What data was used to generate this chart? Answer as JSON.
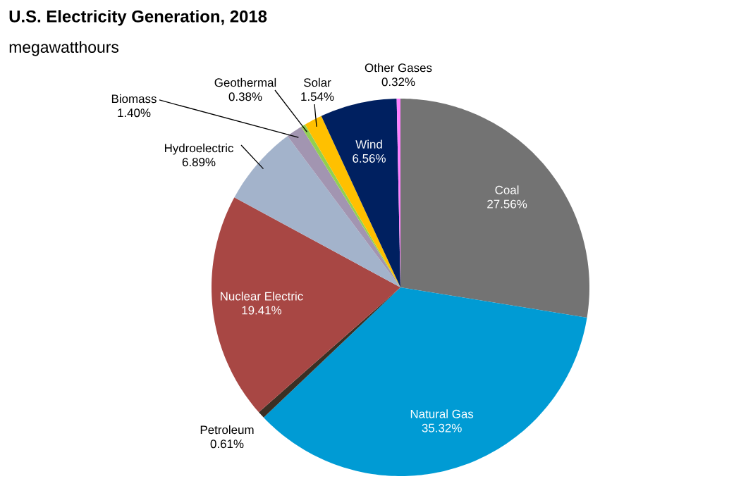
{
  "chart_data": {
    "type": "pie",
    "title": "U.S. Electricity Generation, 2018",
    "subtitle": "megawatthours",
    "categories": [
      "Coal",
      "Natural Gas",
      "Petroleum",
      "Nuclear Electric",
      "Hydroelectric",
      "Biomass",
      "Geothermal",
      "Solar",
      "Wind",
      "Other Gases"
    ],
    "values": [
      27.56,
      35.32,
      0.61,
      19.41,
      6.89,
      1.4,
      0.38,
      1.54,
      6.56,
      0.32
    ],
    "colors": [
      "#737373",
      "#009bd4",
      "#3b3024",
      "#a84744",
      "#a3b3cb",
      "#a295b1",
      "#92d050",
      "#ffc000",
      "#002060",
      "#ff80ff"
    ],
    "value_labels": [
      "27.56%",
      "35.32%",
      "0.61%",
      "19.41%",
      "6.89%",
      "1.40%",
      "0.38%",
      "1.54%",
      "6.56%",
      "0.32%"
    ]
  }
}
